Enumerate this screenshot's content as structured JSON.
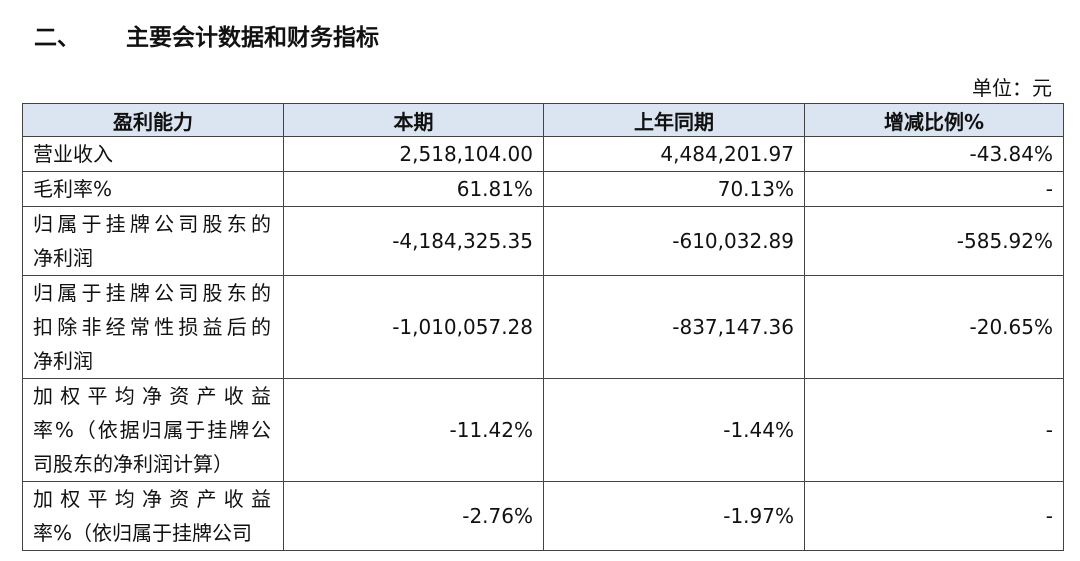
{
  "title": {
    "number": "二、",
    "text": "主要会计数据和财务指标"
  },
  "unit": "单位：元",
  "table": {
    "header": [
      "盈利能力",
      "本期",
      "上年同期",
      "增减比例%"
    ],
    "rows": [
      {
        "label": [
          "营业收入"
        ],
        "values": [
          "2,518,104.00",
          "4,484,201.97",
          "-43.84%"
        ]
      },
      {
        "label": [
          "毛利率%"
        ],
        "values": [
          "61.81%",
          "70.13%",
          "-"
        ]
      },
      {
        "label": [
          "归属于挂牌公司股东的",
          "净利润"
        ],
        "values": [
          "-4,184,325.35",
          "-610,032.89",
          "-585.92%"
        ]
      },
      {
        "label": [
          "归属于挂牌公司股东的",
          "扣除非经常性损益后的",
          "净利润"
        ],
        "values": [
          "-1,010,057.28",
          "-837,147.36",
          "-20.65%"
        ]
      },
      {
        "label": [
          "加权平均净资产收益",
          "率%（依据归属于挂牌公",
          "司股东的净利润计算）"
        ],
        "values": [
          "-11.42%",
          "-1.44%",
          "-"
        ]
      },
      {
        "label": [
          "加权平均净资产收益",
          "率%（依归属于挂牌公司"
        ],
        "values": [
          "-2.76%",
          "-1.97%",
          "-"
        ]
      }
    ]
  }
}
